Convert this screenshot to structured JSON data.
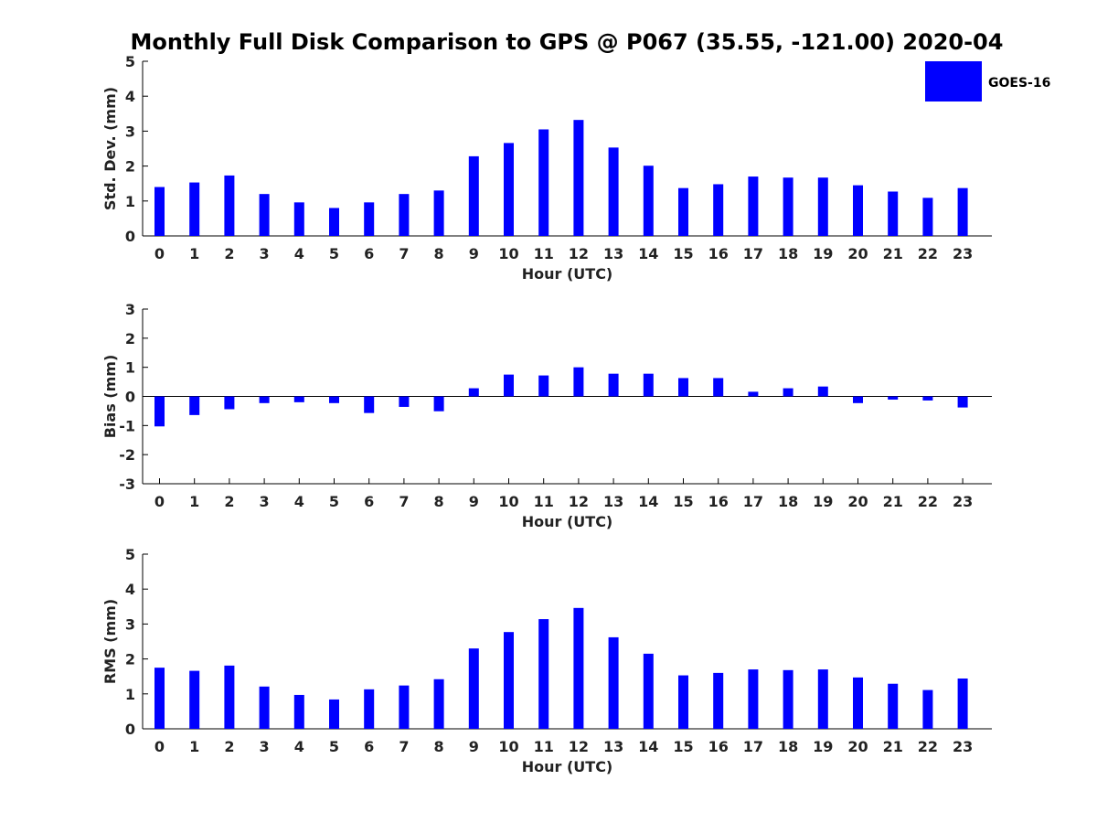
{
  "chart_data": {
    "title": "Monthly Full Disk Comparison to GPS @ P067 (35.55, -121.00) 2020-04",
    "type": "bar",
    "legend": {
      "position": "top-right",
      "entries": [
        "GOES-16"
      ]
    },
    "color": "#0000ff",
    "panels": [
      {
        "name": "std-dev",
        "type": "bar",
        "ylabel": "Std. Dev. (mm)",
        "xlabel": "Hour (UTC)",
        "ylim": [
          0,
          5
        ],
        "yticks": [
          0,
          1,
          2,
          3,
          4,
          5
        ],
        "categories": [
          "0",
          "1",
          "2",
          "3",
          "4",
          "5",
          "6",
          "7",
          "8",
          "9",
          "10",
          "11",
          "12",
          "13",
          "14",
          "15",
          "16",
          "17",
          "18",
          "19",
          "20",
          "21",
          "22",
          "23"
        ],
        "series": [
          {
            "name": "GOES-16",
            "values": [
              1.4,
              1.53,
              1.73,
              1.2,
              0.96,
              0.8,
              0.96,
              1.2,
              1.3,
              2.28,
              2.66,
              3.05,
              3.32,
              2.53,
              2.01,
              1.37,
              1.48,
              1.7,
              1.67,
              1.67,
              1.45,
              1.27,
              1.09,
              1.37
            ]
          }
        ]
      },
      {
        "name": "bias",
        "type": "bar",
        "ylabel": "Bias (mm)",
        "xlabel": "Hour (UTC)",
        "ylim": [
          -3,
          3
        ],
        "yticks": [
          -3,
          -2,
          -1,
          0,
          1,
          2,
          3
        ],
        "categories": [
          "0",
          "1",
          "2",
          "3",
          "4",
          "5",
          "6",
          "7",
          "8",
          "9",
          "10",
          "11",
          "12",
          "13",
          "14",
          "15",
          "16",
          "17",
          "18",
          "19",
          "20",
          "21",
          "22",
          "23"
        ],
        "series": [
          {
            "name": "GOES-16",
            "values": [
              -1.03,
              -0.64,
              -0.44,
              -0.23,
              -0.2,
              -0.23,
              -0.57,
              -0.36,
              -0.51,
              0.28,
              0.75,
              0.72,
              1.0,
              0.78,
              0.78,
              0.63,
              0.63,
              0.16,
              0.28,
              0.34,
              -0.23,
              -0.11,
              -0.14,
              -0.38
            ]
          }
        ]
      },
      {
        "name": "rms",
        "type": "bar",
        "ylabel": "RMS (mm)",
        "xlabel": "Hour (UTC)",
        "ylim": [
          0,
          5
        ],
        "yticks": [
          0,
          1,
          2,
          3,
          4,
          5
        ],
        "categories": [
          "0",
          "1",
          "2",
          "3",
          "4",
          "5",
          "6",
          "7",
          "8",
          "9",
          "10",
          "11",
          "12",
          "13",
          "14",
          "15",
          "16",
          "17",
          "18",
          "19",
          "20",
          "21",
          "22",
          "23"
        ],
        "series": [
          {
            "name": "GOES-16",
            "values": [
              1.75,
              1.66,
              1.81,
              1.21,
              0.97,
              0.84,
              1.13,
              1.24,
              1.42,
              2.3,
              2.77,
              3.14,
              3.46,
              2.62,
              2.15,
              1.53,
              1.6,
              1.7,
              1.68,
              1.7,
              1.47,
              1.29,
              1.11,
              1.44
            ]
          }
        ]
      }
    ]
  }
}
